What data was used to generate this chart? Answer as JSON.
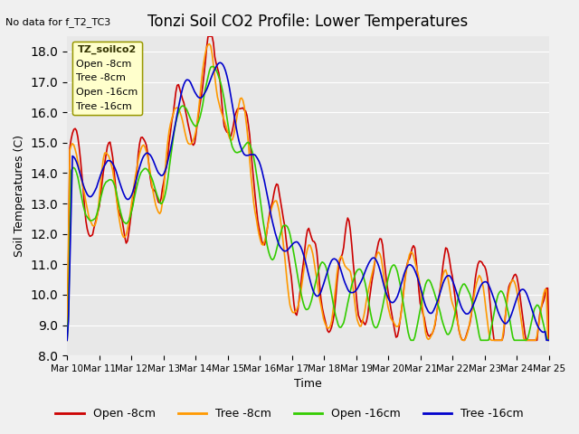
{
  "title": "Tonzi Soil CO2 Profile: Lower Temperatures",
  "subtitle": "No data for f_T2_TC3",
  "ylabel": "Soil Temperatures (C)",
  "xlabel": "Time",
  "legend_label": "TZ_soilco2",
  "ylim": [
    8.0,
    18.5
  ],
  "yticks": [
    8.0,
    9.0,
    10.0,
    11.0,
    12.0,
    13.0,
    14.0,
    15.0,
    16.0,
    17.0,
    18.0
  ],
  "xtick_labels": [
    "Mar 10",
    "Mar 11",
    "Mar 12",
    "Mar 13",
    "Mar 14",
    "Mar 15",
    "Mar 16",
    "Mar 17",
    "Mar 18",
    "Mar 19",
    "Mar 20",
    "Mar 21",
    "Mar 22",
    "Mar 23",
    "Mar 24",
    "Mar 25"
  ],
  "colors": {
    "open8": "#cc0000",
    "tree8": "#ff9900",
    "open16": "#33cc00",
    "tree16": "#0000cc"
  },
  "legend_entries": [
    "Open -8cm",
    "Tree -8cm",
    "Open -16cm",
    "Tree -16cm"
  ],
  "bg_color": "#e8e8e8",
  "plot_bg": "#e8e8e8"
}
